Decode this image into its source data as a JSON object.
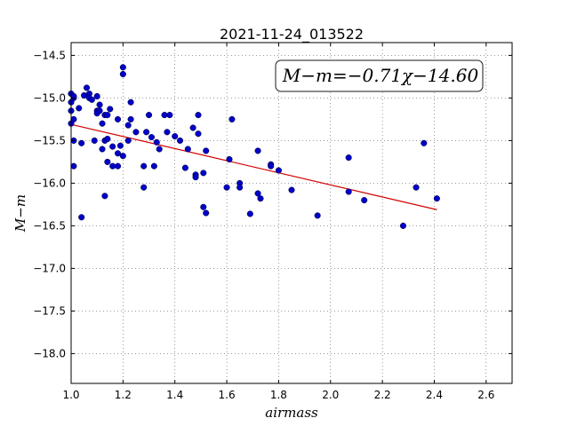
{
  "chart_data": {
    "type": "scatter",
    "title": "2021-11-24_013522",
    "xlabel": "airmass",
    "ylabel": "M−m",
    "xlim": [
      1.0,
      2.7
    ],
    "ylim": [
      -18.35,
      -14.35
    ],
    "y_inverted": true,
    "grid": true,
    "xticks": [
      1.0,
      1.2,
      1.4,
      1.6,
      1.8,
      2.0,
      2.2,
      2.4,
      2.6
    ],
    "xtick_labels": [
      "1.0",
      "1.2",
      "1.4",
      "1.6",
      "1.8",
      "2.0",
      "2.2",
      "2.4",
      "2.6"
    ],
    "yticks": [
      -14.5,
      -15.0,
      -15.5,
      -16.0,
      -16.5,
      -17.0,
      -17.5,
      -18.0
    ],
    "ytick_labels": [
      "−14.5",
      "−15.0",
      "−15.5",
      "−16.0",
      "−16.5",
      "−17.0",
      "−17.5",
      "−18.0"
    ],
    "annotation": "M−m=−0.71χ−14.60",
    "colors": {
      "points": "#0000c8",
      "fit_line": "#d40000"
    },
    "fit": {
      "slope": -0.71,
      "intercept": -14.6,
      "x_range": [
        1.0,
        2.41
      ]
    },
    "points": [
      [
        1.0,
        -14.95
      ],
      [
        1.01,
        -15.0
      ],
      [
        1.01,
        -14.98
      ],
      [
        1.0,
        -15.05
      ],
      [
        1.0,
        -15.15
      ],
      [
        1.01,
        -15.25
      ],
      [
        1.0,
        -15.3
      ],
      [
        1.01,
        -15.5
      ],
      [
        1.01,
        -15.8
      ],
      [
        1.03,
        -15.12
      ],
      [
        1.04,
        -15.53
      ],
      [
        1.04,
        -16.4
      ],
      [
        1.05,
        -14.97
      ],
      [
        1.06,
        -14.88
      ],
      [
        1.07,
        -14.95
      ],
      [
        1.07,
        -15.0
      ],
      [
        1.08,
        -15.02
      ],
      [
        1.09,
        -15.5
      ],
      [
        1.1,
        -15.15
      ],
      [
        1.1,
        -15.18
      ],
      [
        1.1,
        -14.98
      ],
      [
        1.11,
        -15.08
      ],
      [
        1.11,
        -15.15
      ],
      [
        1.12,
        -15.6
      ],
      [
        1.12,
        -15.3
      ],
      [
        1.13,
        -15.2
      ],
      [
        1.13,
        -15.5
      ],
      [
        1.13,
        -16.15
      ],
      [
        1.14,
        -15.2
      ],
      [
        1.14,
        -15.48
      ],
      [
        1.14,
        -15.75
      ],
      [
        1.15,
        -15.13
      ],
      [
        1.16,
        -15.57
      ],
      [
        1.16,
        -15.8
      ],
      [
        1.18,
        -15.8
      ],
      [
        1.18,
        -15.25
      ],
      [
        1.18,
        -15.65
      ],
      [
        1.19,
        -15.56
      ],
      [
        1.2,
        -14.64
      ],
      [
        1.2,
        -14.72
      ],
      [
        1.2,
        -15.68
      ],
      [
        1.22,
        -15.5
      ],
      [
        1.22,
        -15.32
      ],
      [
        1.23,
        -15.25
      ],
      [
        1.23,
        -15.05
      ],
      [
        1.25,
        -15.4
      ],
      [
        1.28,
        -16.05
      ],
      [
        1.28,
        -15.8
      ],
      [
        1.29,
        -15.4
      ],
      [
        1.3,
        -15.2
      ],
      [
        1.31,
        -15.46
      ],
      [
        1.32,
        -15.8
      ],
      [
        1.33,
        -15.52
      ],
      [
        1.34,
        -15.6
      ],
      [
        1.36,
        -15.2
      ],
      [
        1.37,
        -15.4
      ],
      [
        1.38,
        -15.2
      ],
      [
        1.4,
        -15.45
      ],
      [
        1.42,
        -15.5
      ],
      [
        1.44,
        -15.82
      ],
      [
        1.45,
        -15.6
      ],
      [
        1.47,
        -15.35
      ],
      [
        1.48,
        -15.9
      ],
      [
        1.48,
        -15.93
      ],
      [
        1.49,
        -15.2
      ],
      [
        1.49,
        -15.42
      ],
      [
        1.51,
        -15.88
      ],
      [
        1.51,
        -16.28
      ],
      [
        1.52,
        -15.62
      ],
      [
        1.52,
        -16.35
      ],
      [
        1.6,
        -16.05
      ],
      [
        1.61,
        -15.72
      ],
      [
        1.62,
        -15.25
      ],
      [
        1.65,
        -16.0
      ],
      [
        1.65,
        -16.05
      ],
      [
        1.69,
        -16.36
      ],
      [
        1.72,
        -16.12
      ],
      [
        1.72,
        -15.62
      ],
      [
        1.73,
        -16.18
      ],
      [
        1.77,
        -15.78
      ],
      [
        1.77,
        -15.8
      ],
      [
        1.8,
        -15.85
      ],
      [
        1.85,
        -16.08
      ],
      [
        1.95,
        -16.38
      ],
      [
        2.07,
        -15.7
      ],
      [
        2.07,
        -16.1
      ],
      [
        2.13,
        -16.2
      ],
      [
        2.28,
        -16.5
      ],
      [
        2.33,
        -16.05
      ],
      [
        2.36,
        -15.53
      ],
      [
        2.41,
        -16.18
      ]
    ]
  }
}
